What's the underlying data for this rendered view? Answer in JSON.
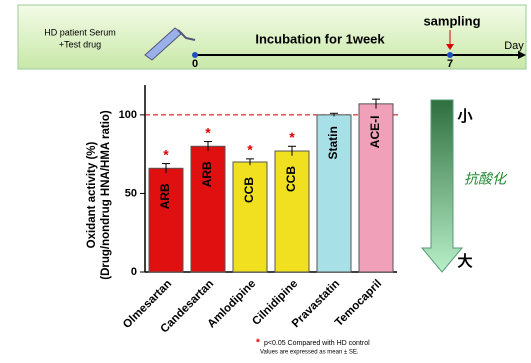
{
  "banner": {
    "sample": [
      "HD patient Serum",
      "+Test drug"
    ],
    "incubation": "Incubation  for 1week",
    "sampling": "sampling",
    "start": "0",
    "end": "7",
    "unit": "Day"
  },
  "arrow": {
    "top": "小",
    "middle": "抗酸化",
    "bottom": "大"
  },
  "footnote": {
    "significance": "p<0.05 Compared with HD control",
    "stats": "Values are expressed as mean ± SE."
  },
  "chart_data": {
    "type": "bar",
    "y_label": [
      "Oxidant activity (%)",
      "(Drug/nondrug HNA/HMA ratio)"
    ],
    "categories": [
      "Olmesartan",
      "Candesartan",
      "Amlodipine",
      "Cilnidipine",
      "Pravastatin",
      "Temocapril"
    ],
    "values": [
      66,
      80,
      70,
      77,
      100,
      107
    ],
    "errors": [
      3,
      3,
      2,
      3,
      1,
      3
    ],
    "bar_labels": [
      "ARB",
      "ARB",
      "CCB",
      "CCB",
      "Statin",
      "ACE-I"
    ],
    "significance": [
      "*",
      "*",
      "*",
      "*",
      null,
      null
    ],
    "colors": [
      "#e01010",
      "#e01010",
      "#f0e020",
      "#f0e020",
      "#a8e0e8",
      "#f0a0b8"
    ],
    "reference_line": 100,
    "ylim": [
      0,
      119
    ],
    "yticks": [
      0,
      50,
      100
    ]
  }
}
